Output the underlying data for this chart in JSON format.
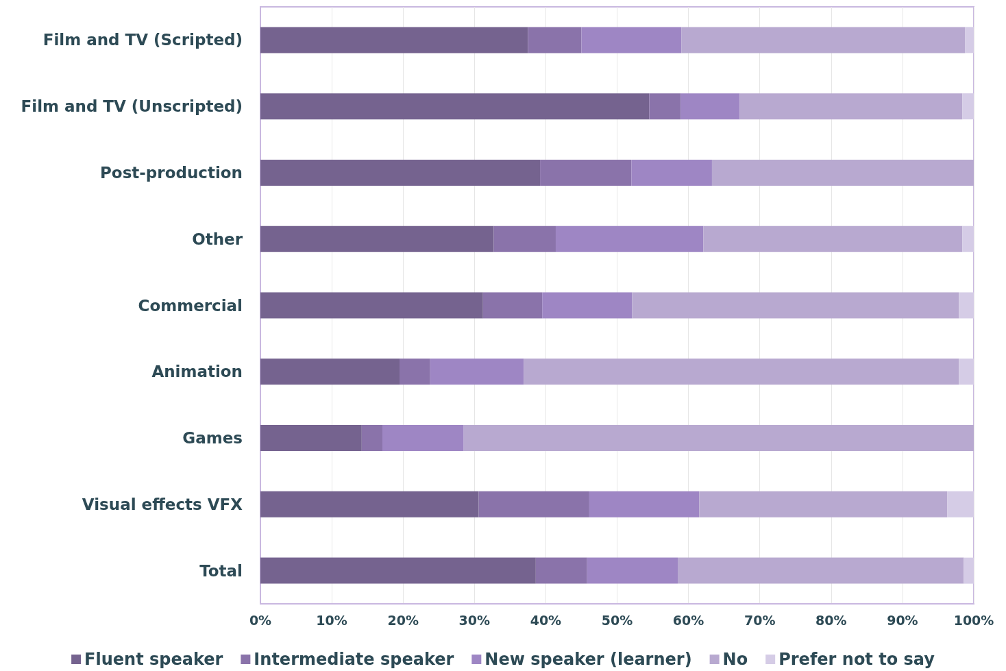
{
  "chart_data": {
    "type": "bar",
    "orientation": "horizontal",
    "stacked": true,
    "categories": [
      "Film and TV (Scripted)",
      "Film and TV (Unscripted)",
      "Post-production",
      "Other",
      "Commercial",
      "Animation",
      "Games",
      "Visual effects VFX",
      "Total"
    ],
    "series": [
      {
        "name": "Fluent speaker",
        "color": "#75638f",
        "values": [
          37.5,
          54.5,
          39.2,
          32.7,
          31.2,
          19.5,
          14.2,
          30.6,
          38.6
        ]
      },
      {
        "name": "Intermediate speaker",
        "color": "#8a73aa",
        "values": [
          7.5,
          4.4,
          12.8,
          8.7,
          8.3,
          4.3,
          2.9,
          15.5,
          7.2
        ]
      },
      {
        "name": "New speaker (learner)",
        "color": "#9e86c4",
        "values": [
          14.0,
          8.3,
          11.3,
          20.7,
          12.6,
          13.1,
          11.4,
          15.4,
          12.7
        ]
      },
      {
        "name": "No",
        "color": "#b8a9d0",
        "values": [
          39.8,
          31.2,
          36.7,
          36.3,
          45.8,
          61.0,
          71.5,
          34.8,
          40.1
        ]
      },
      {
        "name": "Prefer not to say",
        "color": "#d5cce6",
        "values": [
          1.2,
          1.6,
          0,
          1.6,
          2.1,
          2.1,
          0,
          3.7,
          1.4
        ]
      }
    ],
    "xlim": [
      0,
      100
    ],
    "xticks": [
      {
        "value": 0,
        "label": "0%"
      },
      {
        "value": 10,
        "label": "10%"
      },
      {
        "value": 20,
        "label": "20%"
      },
      {
        "value": 30,
        "label": "30%"
      },
      {
        "value": 40,
        "label": "40%"
      },
      {
        "value": 50,
        "label": "50%"
      },
      {
        "value": 60,
        "label": "60%"
      },
      {
        "value": 70,
        "label": "70%"
      },
      {
        "value": 80,
        "label": "80%"
      },
      {
        "value": 90,
        "label": "90%"
      },
      {
        "value": 100,
        "label": "100%"
      }
    ],
    "grid": "x",
    "legend": "bottom"
  }
}
